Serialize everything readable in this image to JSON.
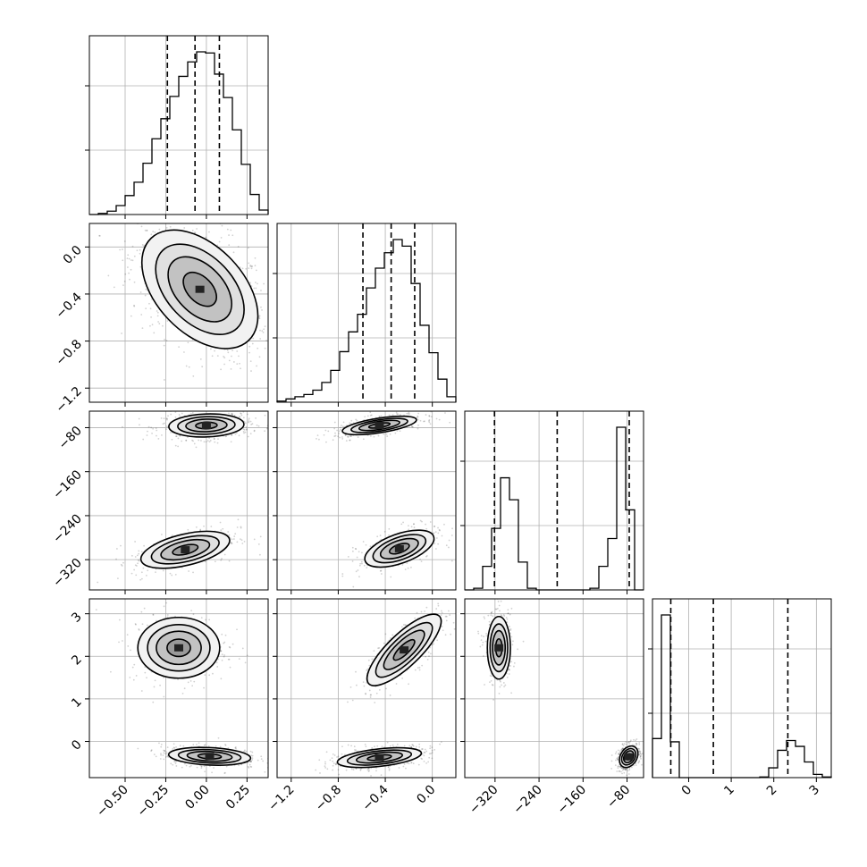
{
  "chart_data": {
    "type": "corner",
    "parameters": 4,
    "grid": true,
    "axes": [
      {
        "range": [
          -0.72,
          0.38
        ],
        "ticks": [
          -0.5,
          -0.25,
          0.0,
          0.25
        ],
        "tick_labels": [
          "−0.50",
          "−0.25",
          "0.00",
          "0.25"
        ]
      },
      {
        "range": [
          -1.32,
          0.2
        ],
        "ticks": [
          -1.2,
          -0.8,
          -0.4,
          0.0
        ],
        "tick_labels": [
          "−1.2",
          "−0.8",
          "−0.4",
          "0.0"
        ]
      },
      {
        "range": [
          -375,
          -50
        ],
        "ticks": [
          -320,
          -240,
          -160,
          -80
        ],
        "tick_labels": [
          "−320",
          "−240",
          "−160",
          "−80"
        ]
      },
      {
        "range": [
          -0.85,
          3.35
        ],
        "ticks": [
          0,
          1,
          2,
          3
        ],
        "tick_labels": [
          "0",
          "1",
          "2",
          "3"
        ]
      }
    ],
    "histograms": [
      {
        "param": 0,
        "bin_edges": [
          -0.72,
          -0.665,
          -0.61,
          -0.555,
          -0.5,
          -0.445,
          -0.39,
          -0.335,
          -0.28,
          -0.225,
          -0.17,
          -0.115,
          -0.06,
          -0.005,
          0.05,
          0.105,
          0.16,
          0.215,
          0.27,
          0.325,
          0.38
        ],
        "counts": [
          0,
          1,
          3,
          8,
          17,
          29,
          46,
          68,
          86,
          106,
          124,
          137,
          146,
          145,
          126,
          105,
          76,
          45,
          18,
          4
        ],
        "quantiles": [
          -0.24,
          -0.07,
          0.08
        ]
      },
      {
        "param": 1,
        "bin_edges": [
          -1.32,
          -1.244,
          -1.168,
          -1.092,
          -1.016,
          -0.94,
          -0.864,
          -0.788,
          -0.712,
          -0.636,
          -0.56,
          -0.484,
          -0.408,
          -0.332,
          -0.256,
          -0.18,
          -0.104,
          -0.028,
          0.048,
          0.124,
          0.2
        ],
        "counts": [
          1,
          3,
          5,
          7,
          11,
          18,
          29,
          46,
          64,
          80,
          104,
          122,
          136,
          148,
          142,
          108,
          70,
          45,
          21,
          5
        ],
        "quantiles": [
          -0.59,
          -0.35,
          -0.15
        ]
      },
      {
        "param": 2,
        "bin_edges": [
          -375,
          -358.75,
          -342.5,
          -326.25,
          -310,
          -293.75,
          -277.5,
          -261.25,
          -245,
          -228.75,
          -212.5,
          -196.25,
          -180,
          -163.75,
          -147.5,
          -131.25,
          -115,
          -98.75,
          -82.5,
          -66.25,
          -50
        ],
        "counts": [
          0,
          2,
          28,
          73,
          133,
          107,
          33,
          2,
          0,
          0,
          0,
          0,
          0,
          0,
          2,
          28,
          61,
          193,
          95,
          0
        ],
        "quantiles": [
          -321,
          -207,
          -76
        ]
      },
      {
        "param": 3,
        "bin_edges": [
          -0.85,
          -0.64,
          -0.43,
          -0.22,
          -0.01,
          0.2,
          0.41,
          0.62,
          0.83,
          1.04,
          1.25,
          1.46,
          1.67,
          1.88,
          2.09,
          2.3,
          2.51,
          2.72,
          2.93,
          3.14,
          3.35
        ],
        "counts": [
          60,
          250,
          55,
          0,
          0,
          0,
          0,
          0,
          0,
          0,
          0,
          0,
          1,
          15,
          42,
          57,
          48,
          24,
          5,
          1
        ],
        "quantiles": [
          -0.42,
          0.58,
          2.33
        ]
      }
    ],
    "panels_2d": [
      {
        "x": 0,
        "y": 1,
        "modes": [
          {
            "cx": -0.04,
            "cy": -0.36,
            "sx": 0.17,
            "sy": 0.24,
            "rho": -0.45,
            "w": 1.0
          }
        ]
      },
      {
        "x": 0,
        "y": 2,
        "modes": [
          {
            "cx": 0.0,
            "cy": -76,
            "sx": 0.11,
            "sy": 10,
            "rho": 0.1,
            "w": 0.6
          },
          {
            "cx": -0.13,
            "cy": -302,
            "sx": 0.13,
            "sy": 16,
            "rho": 0.5,
            "w": 0.4
          }
        ]
      },
      {
        "x": 0,
        "y": 3,
        "modes": [
          {
            "cx": -0.17,
            "cy": 2.2,
            "sx": 0.12,
            "sy": 0.34,
            "rho": 0.0,
            "w": 0.4
          },
          {
            "cx": 0.02,
            "cy": -0.35,
            "sx": 0.12,
            "sy": 0.1,
            "rho": -0.2,
            "w": 0.6
          }
        ]
      },
      {
        "x": 1,
        "y": 2,
        "modes": [
          {
            "cx": -0.45,
            "cy": -76,
            "sx": 0.15,
            "sy": 8,
            "rho": 0.6,
            "w": 0.6
          },
          {
            "cx": -0.28,
            "cy": -300,
            "sx": 0.14,
            "sy": 16,
            "rho": 0.55,
            "w": 0.4
          }
        ]
      },
      {
        "x": 1,
        "y": 3,
        "modes": [
          {
            "cx": -0.24,
            "cy": 2.15,
            "sx": 0.15,
            "sy": 0.4,
            "rho": 0.8,
            "w": 0.4
          },
          {
            "cx": -0.45,
            "cy": -0.38,
            "sx": 0.17,
            "sy": 0.11,
            "rho": 0.45,
            "w": 0.6
          }
        ]
      },
      {
        "x": 2,
        "y": 3,
        "modes": [
          {
            "cx": -313,
            "cy": 2.2,
            "sx": 10,
            "sy": 0.35,
            "rho": 0.0,
            "w": 0.4
          },
          {
            "cx": -77,
            "cy": -0.36,
            "sx": 8,
            "sy": 0.12,
            "rho": 0.3,
            "w": 0.6
          }
        ]
      }
    ]
  }
}
